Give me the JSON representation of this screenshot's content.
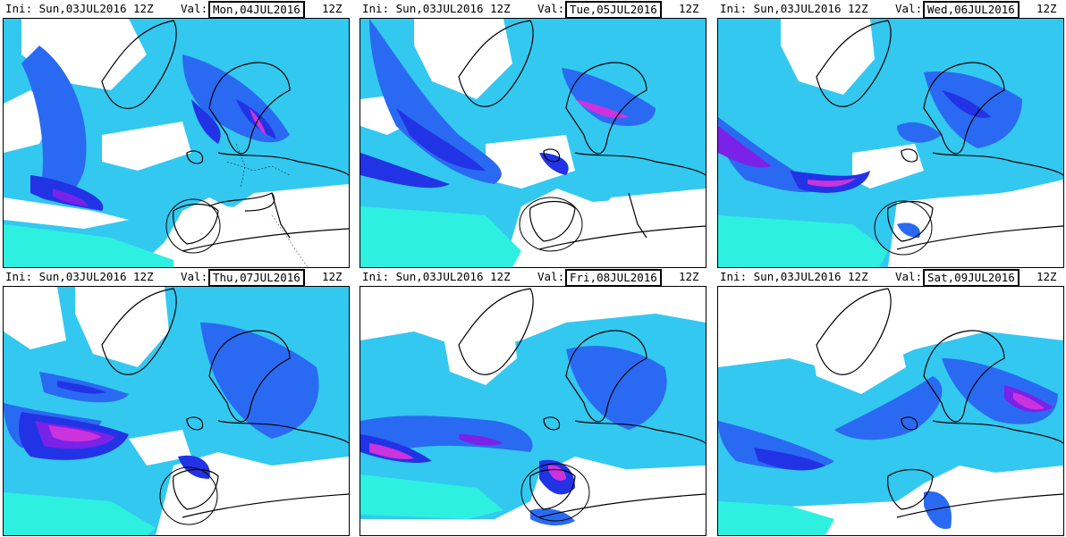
{
  "colors": {
    "cyan": "#2ef0e0",
    "aqua": "#33c8f0",
    "blue": "#2a6af2",
    "deepblue": "#2233e6",
    "purple": "#7a22e8",
    "magenta": "#cc33dd",
    "land_outline": "#000000",
    "background": "#ffffff"
  },
  "panels": [
    {
      "ini_label": "Ini:",
      "ini_value": "Sun,03JUL2016",
      "ini_hour": "12Z",
      "val_label": "Val:",
      "val_value": "Mon,04JUL2016",
      "val_hour": "12Z"
    },
    {
      "ini_label": "Ini:",
      "ini_value": "Sun,03JUL2016",
      "ini_hour": "12Z",
      "val_label": "Val:",
      "val_value": "Tue,05JUL2016",
      "val_hour": "12Z"
    },
    {
      "ini_label": "Ini:",
      "ini_value": "Sun,03JUL2016",
      "ini_hour": "12Z",
      "val_label": "Val:",
      "val_value": "Wed,06JUL2016",
      "val_hour": "12Z"
    },
    {
      "ini_label": "Ini:",
      "ini_value": "Sun,03JUL2016",
      "ini_hour": "12Z",
      "val_label": "Val:",
      "val_value": "Thu,07JUL2016",
      "val_hour": "12Z"
    },
    {
      "ini_label": "Ini:",
      "ini_value": "Sun,03JUL2016",
      "ini_hour": "12Z",
      "val_label": "Val:",
      "val_value": "Fri,08JUL2016",
      "val_hour": "12Z"
    },
    {
      "ini_label": "Ini:",
      "ini_value": "Sun,03JUL2016",
      "ini_hour": "12Z",
      "val_label": "Val:",
      "val_value": "Sat,09JUL2016",
      "val_hour": "12Z"
    }
  ]
}
